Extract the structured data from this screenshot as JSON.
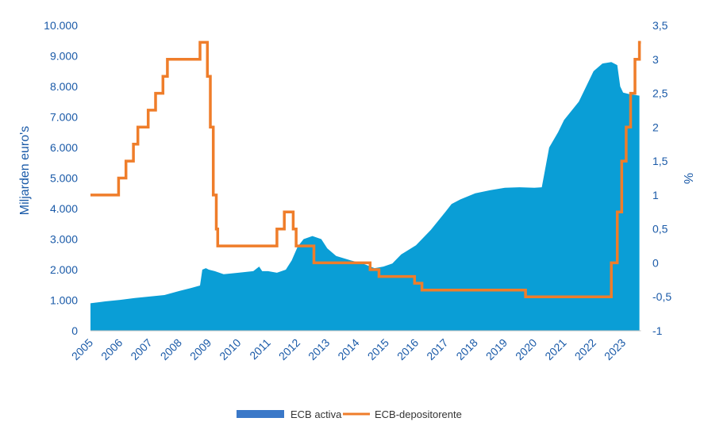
{
  "chart_data": {
    "type": "area+line",
    "title": "",
    "xlabel": "",
    "ylabel_left": "Miljarden euro's",
    "ylabel_right": "%",
    "x_range": [
      2005,
      2023.6
    ],
    "ylim_left": [
      0,
      10000
    ],
    "ylim_right": [
      -1,
      3.5
    ],
    "x_ticks": [
      "2005",
      "2006",
      "2007",
      "2008",
      "2009",
      "2010",
      "2011",
      "2012",
      "2013",
      "2014",
      "2015",
      "2016",
      "2017",
      "2018",
      "2019",
      "2020",
      "2021",
      "2022",
      "2023"
    ],
    "y_ticks_left": [
      {
        "value": 0,
        "label": "0"
      },
      {
        "value": 1000,
        "label": "1.000"
      },
      {
        "value": 2000,
        "label": "2.000"
      },
      {
        "value": 3000,
        "label": "3.000"
      },
      {
        "value": 4000,
        "label": "4.000"
      },
      {
        "value": 5000,
        "label": "5.000"
      },
      {
        "value": 6000,
        "label": "6.000"
      },
      {
        "value": 7000,
        "label": "7.000"
      },
      {
        "value": 8000,
        "label": "8.000"
      },
      {
        "value": 9000,
        "label": "9.000"
      },
      {
        "value": 10000,
        "label": "10.000"
      }
    ],
    "y_ticks_right": [
      {
        "value": -1,
        "label": "-1"
      },
      {
        "value": -0.5,
        "label": "-0,5"
      },
      {
        "value": 0,
        "label": "0"
      },
      {
        "value": 0.5,
        "label": "0,5"
      },
      {
        "value": 1,
        "label": "1"
      },
      {
        "value": 1.5,
        "label": "1,5"
      },
      {
        "value": 2,
        "label": "2"
      },
      {
        "value": 2.5,
        "label": "2,5"
      },
      {
        "value": 3,
        "label": "3"
      },
      {
        "value": 3.5,
        "label": "3,5"
      }
    ],
    "legend_position": "bottom",
    "series": [
      {
        "name": "ECB activa",
        "type": "area",
        "axis": "left",
        "color": "#0a9ed6",
        "legend_color": "#3a78c8",
        "points": [
          [
            2005.0,
            900
          ],
          [
            2005.5,
            960
          ],
          [
            2006.0,
            1010
          ],
          [
            2006.5,
            1070
          ],
          [
            2007.0,
            1120
          ],
          [
            2007.5,
            1170
          ],
          [
            2008.0,
            1300
          ],
          [
            2008.4,
            1400
          ],
          [
            2008.7,
            1480
          ],
          [
            2008.78,
            2000
          ],
          [
            2008.9,
            2050
          ],
          [
            2009.0,
            2000
          ],
          [
            2009.2,
            1950
          ],
          [
            2009.5,
            1850
          ],
          [
            2010.0,
            1900
          ],
          [
            2010.5,
            1950
          ],
          [
            2010.7,
            2100
          ],
          [
            2010.8,
            1950
          ],
          [
            2011.0,
            1950
          ],
          [
            2011.3,
            1900
          ],
          [
            2011.6,
            2000
          ],
          [
            2011.8,
            2300
          ],
          [
            2012.0,
            2750
          ],
          [
            2012.2,
            3000
          ],
          [
            2012.5,
            3100
          ],
          [
            2012.8,
            3000
          ],
          [
            2013.0,
            2700
          ],
          [
            2013.3,
            2450
          ],
          [
            2013.8,
            2300
          ],
          [
            2014.2,
            2200
          ],
          [
            2014.6,
            2050
          ],
          [
            2014.9,
            2100
          ],
          [
            2015.2,
            2200
          ],
          [
            2015.5,
            2500
          ],
          [
            2016.0,
            2800
          ],
          [
            2016.5,
            3300
          ],
          [
            2017.0,
            3900
          ],
          [
            2017.2,
            4150
          ],
          [
            2017.5,
            4300
          ],
          [
            2018.0,
            4500
          ],
          [
            2018.5,
            4600
          ],
          [
            2019.0,
            4680
          ],
          [
            2019.5,
            4700
          ],
          [
            2020.0,
            4680
          ],
          [
            2020.25,
            4700
          ],
          [
            2020.5,
            6000
          ],
          [
            2020.8,
            6500
          ],
          [
            2021.0,
            6900
          ],
          [
            2021.5,
            7500
          ],
          [
            2021.8,
            8100
          ],
          [
            2022.0,
            8500
          ],
          [
            2022.3,
            8750
          ],
          [
            2022.6,
            8800
          ],
          [
            2022.8,
            8700
          ],
          [
            2022.9,
            8000
          ],
          [
            2023.0,
            7800
          ],
          [
            2023.2,
            7750
          ],
          [
            2023.55,
            7700
          ]
        ]
      },
      {
        "name": "ECB-depositorente",
        "type": "step-line",
        "axis": "right",
        "color": "#ef7d2a",
        "points": [
          [
            2005.0,
            1.0
          ],
          [
            2005.95,
            1.25
          ],
          [
            2006.2,
            1.5
          ],
          [
            2006.45,
            1.75
          ],
          [
            2006.6,
            2.0
          ],
          [
            2006.95,
            2.25
          ],
          [
            2007.2,
            2.5
          ],
          [
            2007.45,
            2.75
          ],
          [
            2007.6,
            3.0
          ],
          [
            2008.7,
            3.25
          ],
          [
            2008.95,
            2.75
          ],
          [
            2009.05,
            2.0
          ],
          [
            2009.15,
            1.0
          ],
          [
            2009.25,
            0.5
          ],
          [
            2009.3,
            0.25
          ],
          [
            2011.3,
            0.5
          ],
          [
            2011.55,
            0.75
          ],
          [
            2011.85,
            0.5
          ],
          [
            2011.95,
            0.25
          ],
          [
            2012.55,
            0.0
          ],
          [
            2014.45,
            -0.1
          ],
          [
            2014.75,
            -0.2
          ],
          [
            2015.95,
            -0.3
          ],
          [
            2016.2,
            -0.4
          ],
          [
            2019.7,
            -0.5
          ],
          [
            2022.6,
            0.0
          ],
          [
            2022.8,
            0.75
          ],
          [
            2022.95,
            1.5
          ],
          [
            2023.1,
            2.0
          ],
          [
            2023.25,
            2.5
          ],
          [
            2023.4,
            3.0
          ],
          [
            2023.55,
            3.25
          ]
        ],
        "end_x": 2023.6
      }
    ]
  }
}
